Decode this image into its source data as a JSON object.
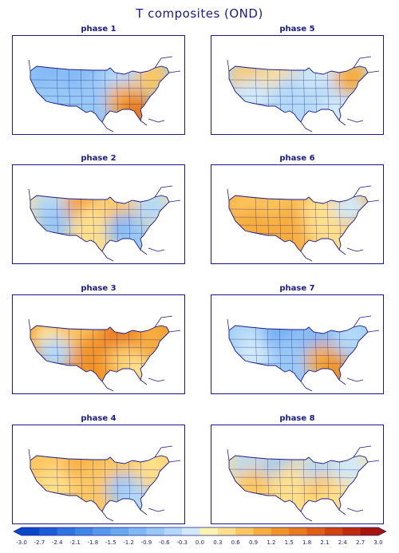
{
  "title": "T composites (OND)",
  "chart_data": {
    "type": "heatmap",
    "title": "T composites (OND)",
    "variable": "temperature anomaly composites",
    "region": "contiguous United States",
    "panels": [
      {
        "label": "phase 1",
        "pattern": "cool west and central, warm east/southeast",
        "regions": {
          "northwest": -1.2,
          "southwest": -0.9,
          "northern_plains": -1.0,
          "central": -0.9,
          "great_lakes": -0.4,
          "northeast": 0.6,
          "southeast": 0.9,
          "florida": 1.5
        }
      },
      {
        "label": "phase 5",
        "pattern": "warm northwest/northeast, cool central/south",
        "regions": {
          "northwest": 0.6,
          "southwest": -0.3,
          "northern_plains": 0.5,
          "central": -0.6,
          "great_lakes": -0.3,
          "northeast": 0.9,
          "southeast": -0.6,
          "florida": -0.3
        }
      },
      {
        "label": "phase 2",
        "pattern": "warm north-central, cool southwest and east",
        "regions": {
          "northwest": -0.6,
          "southwest": -0.9,
          "northern_plains": 1.2,
          "central": 0.3,
          "great_lakes": 0.6,
          "northeast": -0.6,
          "southeast": -1.2,
          "florida": -0.9
        }
      },
      {
        "label": "phase 6",
        "pattern": "broadly warm, near normal east",
        "regions": {
          "northwest": 0.6,
          "southwest": 0.9,
          "northern_plains": 0.6,
          "central": 0.9,
          "great_lakes": 0.3,
          "northeast": -0.3,
          "southeast": 0.3,
          "florida": 0.3
        }
      },
      {
        "label": "phase 3",
        "pattern": "warm central/east, cool far west",
        "regions": {
          "northwest": 0.3,
          "southwest": -0.6,
          "northern_plains": 0.6,
          "central": 1.2,
          "great_lakes": 1.5,
          "northeast": 0.9,
          "southeast": 0.6,
          "florida": 0.3
        }
      },
      {
        "label": "phase 7",
        "pattern": "cool north and west, warm southeast",
        "regions": {
          "northwest": -0.6,
          "southwest": -0.3,
          "northern_plains": -1.5,
          "central": -0.9,
          "great_lakes": -1.2,
          "northeast": -0.6,
          "southeast": 0.9,
          "florida": 1.2
        }
      },
      {
        "label": "phase 4",
        "pattern": "warm west and north, cool southeast",
        "regions": {
          "northwest": 0.6,
          "southwest": 0.3,
          "northern_plains": 0.9,
          "central": 0.6,
          "great_lakes": 0.6,
          "northeast": 0.3,
          "southeast": -0.9,
          "florida": -0.6
        }
      },
      {
        "label": "phase 8",
        "pattern": "cool north, warm south/southwest",
        "regions": {
          "northwest": -0.6,
          "southwest": 0.6,
          "northern_plains": -0.9,
          "central": 0.3,
          "great_lakes": -0.6,
          "northeast": -0.3,
          "southeast": 0.6,
          "florida": 0.3
        }
      }
    ],
    "colorbar": {
      "ticks": [
        "-3.0",
        "-2.7",
        "-2.4",
        "-2.1",
        "-1.8",
        "-1.5",
        "-1.2",
        "-0.9",
        "-0.6",
        "-0.3",
        "0.0",
        "0.3",
        "0.6",
        "0.9",
        "1.2",
        "1.5",
        "1.8",
        "2.1",
        "2.4",
        "2.7",
        "3.0"
      ],
      "colors": [
        "#0a47c8",
        "#1d5ed6",
        "#2f74e0",
        "#4287e6",
        "#5698ec",
        "#6aa8f0",
        "#80b8f4",
        "#98c8f6",
        "#b4d9f8",
        "#d2eaf8",
        "#fff3b0",
        "#ffe08a",
        "#fcc760",
        "#f7ad3d",
        "#f19426",
        "#ea7a1a",
        "#e05f12",
        "#d3440d",
        "#c22b09",
        "#a81406"
      ]
    },
    "layout": "4 rows x 2 columns"
  },
  "colors": {
    "text": "#1a1a8c",
    "border": "#1a1a8c",
    "land": "#ffffff"
  }
}
